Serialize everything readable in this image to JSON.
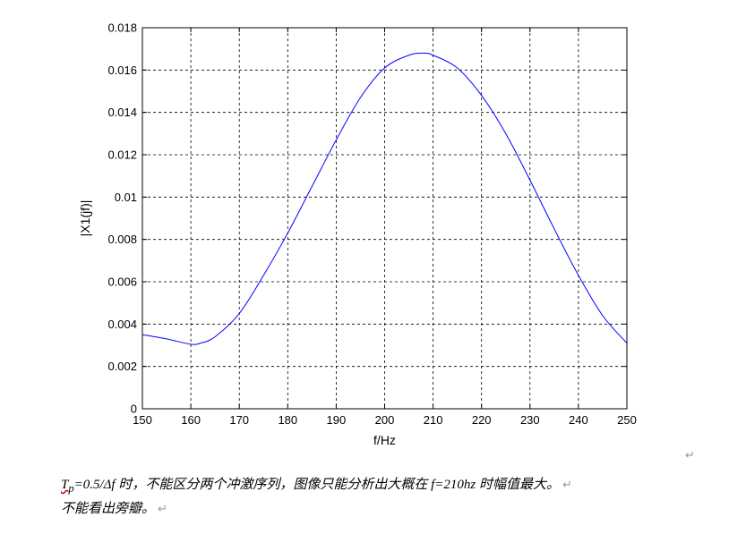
{
  "chart_data": {
    "type": "line",
    "xlabel": "f/Hz",
    "ylabel": "|X1(jf)|",
    "xlim": [
      150,
      250
    ],
    "ylim": [
      0,
      0.018
    ],
    "xticks": [
      150,
      160,
      170,
      180,
      190,
      200,
      210,
      220,
      230,
      240,
      250
    ],
    "xtick_labels": [
      "150",
      "160",
      "170",
      "180",
      "190",
      "200",
      "210",
      "220",
      "230",
      "240",
      "250"
    ],
    "yticks": [
      0,
      0.002,
      0.004,
      0.006,
      0.008,
      0.01,
      0.012,
      0.014,
      0.016,
      0.018
    ],
    "ytick_labels": [
      "0",
      "0.002",
      "0.004",
      "0.006",
      "0.008",
      "0.01",
      "0.012",
      "0.014",
      "0.016",
      "0.018"
    ],
    "grid": true,
    "series": [
      {
        "color": "#0000ff",
        "x": [
          150,
          155,
          160,
          162,
          165,
          170,
          175,
          180,
          185,
          190,
          195,
          200,
          205,
          208,
          210,
          215,
          220,
          225,
          230,
          235,
          240,
          245,
          250
        ],
        "y": [
          0.0035,
          0.0033,
          0.00305,
          0.0031,
          0.0034,
          0.0045,
          0.0063,
          0.0083,
          0.0105,
          0.0127,
          0.0147,
          0.0161,
          0.0167,
          0.0168,
          0.0167,
          0.0161,
          0.0148,
          0.013,
          0.0108,
          0.0085,
          0.0063,
          0.0044,
          0.0031
        ]
      }
    ]
  },
  "caption": {
    "line1": {
      "tp": "T",
      "tp_sub": "p",
      "text": "=0.5/Δf 时，不能区分两个冲激序列，图像只能分析出大概在 f=210hz 时幅值最大。"
    },
    "line2": {
      "text": "不能看出旁瓣。"
    },
    "para_mark": "↵"
  }
}
